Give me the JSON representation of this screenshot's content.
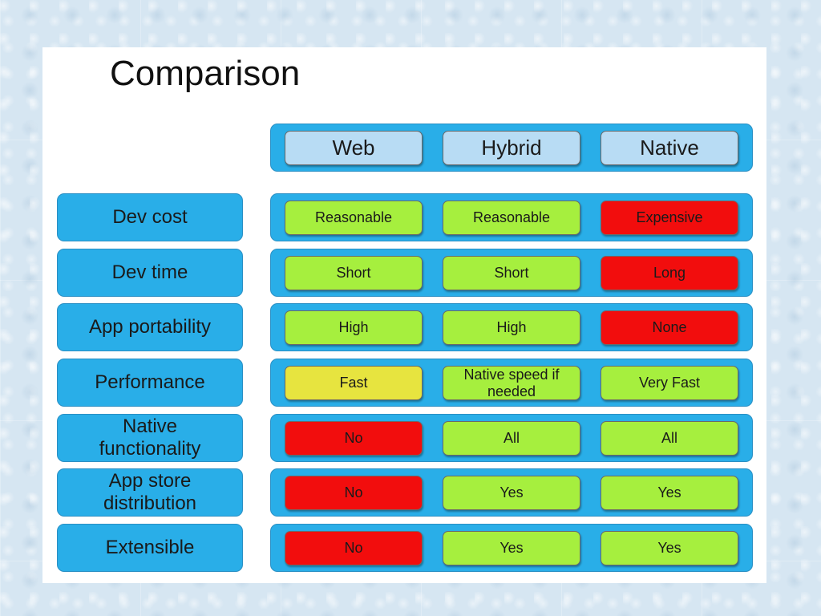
{
  "title": "Comparison",
  "colors": {
    "good": "#a6ef3e",
    "medium": "#e7e43f",
    "bad": "#f20d0d",
    "band": "#29aee8",
    "header_cell": "#b8dcf4"
  },
  "columns": [
    "Web",
    "Hybrid",
    "Native"
  ],
  "rows": [
    {
      "label": "Dev cost",
      "cells": [
        {
          "text": "Reasonable",
          "rating": "good"
        },
        {
          "text": "Reasonable",
          "rating": "good"
        },
        {
          "text": "Expensive",
          "rating": "bad"
        }
      ]
    },
    {
      "label": "Dev time",
      "cells": [
        {
          "text": "Short",
          "rating": "good"
        },
        {
          "text": "Short",
          "rating": "good"
        },
        {
          "text": "Long",
          "rating": "bad"
        }
      ]
    },
    {
      "label": "App portability",
      "cells": [
        {
          "text": "High",
          "rating": "good"
        },
        {
          "text": "High",
          "rating": "good"
        },
        {
          "text": "None",
          "rating": "bad"
        }
      ]
    },
    {
      "label": "Performance",
      "cells": [
        {
          "text": "Fast",
          "rating": "medium"
        },
        {
          "text": "Native speed if needed",
          "rating": "good"
        },
        {
          "text": "Very Fast",
          "rating": "good"
        }
      ]
    },
    {
      "label": "Native functionality",
      "cells": [
        {
          "text": "No",
          "rating": "bad"
        },
        {
          "text": "All",
          "rating": "good"
        },
        {
          "text": "All",
          "rating": "good"
        }
      ]
    },
    {
      "label": "App store distribution",
      "cells": [
        {
          "text": "No",
          "rating": "bad"
        },
        {
          "text": "Yes",
          "rating": "good"
        },
        {
          "text": "Yes",
          "rating": "good"
        }
      ]
    },
    {
      "label": "Extensible",
      "cells": [
        {
          "text": "No",
          "rating": "bad"
        },
        {
          "text": "Yes",
          "rating": "good"
        },
        {
          "text": "Yes",
          "rating": "good"
        }
      ]
    }
  ]
}
